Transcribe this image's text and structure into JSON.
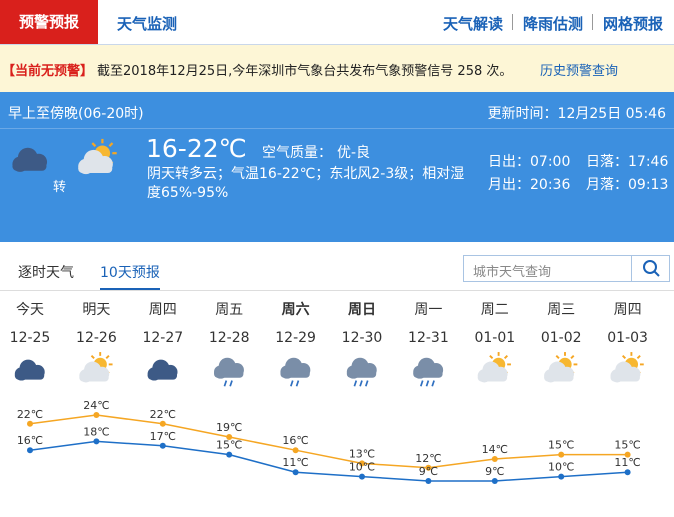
{
  "nav": {
    "active_tab": "预警预报",
    "tab": "天气监测",
    "links": [
      "天气解读",
      "降雨估测",
      "网格预报"
    ]
  },
  "alert": {
    "status": "【当前无预警】",
    "message": "截至2018年12月25日,今年深圳市气象台共发布气象预警信号 258 次。",
    "link": "历史预警查询"
  },
  "today": {
    "period": "早上至傍晚(06-20时)",
    "update": "更新时间：12月25日 05:46",
    "transition": "转",
    "temperature": "16-22℃",
    "air_quality_label": "空气质量：",
    "air_quality": "优-良",
    "description": "阴天转多云；气温16-22℃；东北风2-3级；相对湿度65%-95%",
    "sun_moon": [
      "日出：07:00",
      "日落：17:46",
      "月出：20:36",
      "月落：09:13"
    ]
  },
  "forecast": {
    "tabs": [
      "逐时天气",
      "10天预报"
    ],
    "search_placeholder": "城市天气查询",
    "weekdays": [
      "今天",
      "明天",
      "周四",
      "周五",
      "周六",
      "周日",
      "周一",
      "周二",
      "周三",
      "周四"
    ],
    "dates": [
      "12-25",
      "12-26",
      "12-27",
      "12-28",
      "12-29",
      "12-30",
      "12-31",
      "01-01",
      "01-02",
      "01-03"
    ],
    "highs": [
      22,
      24,
      22,
      19,
      16,
      13,
      12,
      14,
      15,
      15
    ],
    "high_labels": [
      "22℃",
      "24℃",
      "22℃",
      "19℃",
      "16℃",
      "13℃",
      "12℃",
      "14℃",
      "15℃",
      "15℃"
    ],
    "lows": [
      16,
      18,
      17,
      15,
      11,
      10,
      9,
      9,
      10,
      11
    ],
    "low_labels": [
      "16℃",
      "18℃",
      "17℃",
      "15℃",
      "11℃",
      "10℃",
      "9℃",
      "9℃",
      "10℃",
      "11℃"
    ]
  }
}
